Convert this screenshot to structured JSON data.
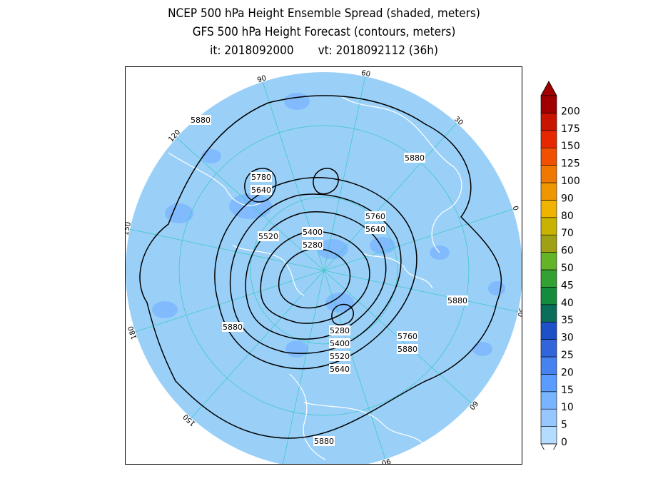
{
  "title": {
    "line1": "NCEP 500 hPa Height Ensemble Spread (shaded, meters)",
    "line2": "GFS 500 hPa Height Forecast (contours, meters)",
    "init": "it: 2018092000",
    "valid": "vt: 2018092112 (36h)"
  },
  "map": {
    "projection": "north-polar-stereographic",
    "ocean_color": "#9ad0f8",
    "frame_background": "#ffffff",
    "graticule_color": "#40c8c8",
    "coastline_color": "#ffffff",
    "contour_color": "#000000",
    "longitude_labels": [
      "60",
      "30",
      "0",
      "30",
      "60",
      "90",
      "120",
      "150",
      "180",
      "150",
      "120",
      "90"
    ],
    "contour_labels": [
      {
        "text": "5880",
        "zone": "upper-left"
      },
      {
        "text": "5880",
        "zone": "upper-right"
      },
      {
        "text": "5780",
        "zone": "upper-center-left"
      },
      {
        "text": "5640",
        "zone": "upper-center-left"
      },
      {
        "text": "5760",
        "zone": "center-right"
      },
      {
        "text": "5640",
        "zone": "center-right"
      },
      {
        "text": "5520",
        "zone": "center-left"
      },
      {
        "text": "5400",
        "zone": "center"
      },
      {
        "text": "5280",
        "zone": "center"
      },
      {
        "text": "5880",
        "zone": "right"
      },
      {
        "text": "5880",
        "zone": "left"
      },
      {
        "text": "5280",
        "zone": "lower-center"
      },
      {
        "text": "5400",
        "zone": "lower-center"
      },
      {
        "text": "5520",
        "zone": "lower-center"
      },
      {
        "text": "5640",
        "zone": "lower-center"
      },
      {
        "text": "5760",
        "zone": "lower-right"
      },
      {
        "text": "5880",
        "zone": "lower-right"
      },
      {
        "text": "5880",
        "zone": "bottom"
      }
    ]
  },
  "colorbar": {
    "levels": [
      "0",
      "5",
      "10",
      "15",
      "20",
      "25",
      "30",
      "35",
      "40",
      "45",
      "50",
      "60",
      "70",
      "80",
      "90",
      "100",
      "125",
      "150",
      "175",
      "200"
    ],
    "colors": [
      "#b4dcff",
      "#96c8ff",
      "#78b4ff",
      "#5a9cff",
      "#4682f0",
      "#3264dc",
      "#1e50c8",
      "#0a6e5a",
      "#148c3c",
      "#32a032",
      "#64b428",
      "#a0a014",
      "#c8b400",
      "#f0b400",
      "#f09600",
      "#f07800",
      "#f05000",
      "#e62800",
      "#c81400",
      "#a00000"
    ]
  }
}
